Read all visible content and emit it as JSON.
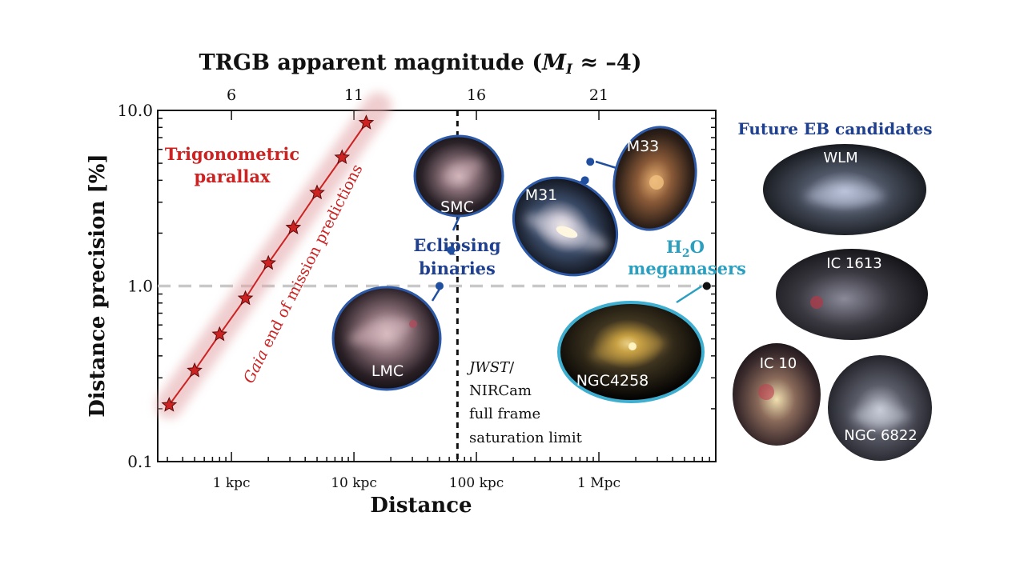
{
  "chart_data": {
    "type": "scatter",
    "top_axis": {
      "label_main": "TRGB apparent magnitude (",
      "label_var": "M",
      "label_sub": "I",
      "label_tail": " ≈ –4)",
      "ticks": [
        6,
        11,
        16,
        21
      ]
    },
    "xlabel": "Distance",
    "ylabel": "Distance precision [%]",
    "x_scale": "log",
    "y_scale": "log",
    "xlim_kpc": [
      0.25,
      9000
    ],
    "ylim": [
      0.1,
      10.0
    ],
    "x_ticks": [
      {
        "value_kpc": 1,
        "label": "1 kpc"
      },
      {
        "value_kpc": 10,
        "label": "10 kpc"
      },
      {
        "value_kpc": 100,
        "label": "100 kpc"
      },
      {
        "value_kpc": 1000,
        "label": "1 Mpc"
      }
    ],
    "y_ticks": [
      {
        "value": 0.1,
        "label": "0.1"
      },
      {
        "value": 1.0,
        "label": "1.0"
      },
      {
        "value": 10.0,
        "label": "10.0"
      }
    ],
    "series": [
      {
        "name": "Gaia end of mission predictions",
        "color": "#cc2222",
        "points": [
          {
            "x_kpc": 0.31,
            "y": 0.21
          },
          {
            "x_kpc": 0.5,
            "y": 0.33
          },
          {
            "x_kpc": 0.8,
            "y": 0.53
          },
          {
            "x_kpc": 1.3,
            "y": 0.85
          },
          {
            "x_kpc": 2.0,
            "y": 1.35
          },
          {
            "x_kpc": 3.2,
            "y": 2.15
          },
          {
            "x_kpc": 5.0,
            "y": 3.4
          },
          {
            "x_kpc": 8.0,
            "y": 5.4
          },
          {
            "x_kpc": 12.6,
            "y": 8.5
          }
        ]
      }
    ],
    "reference_lines": [
      {
        "type": "horizontal",
        "y": 1.0,
        "color": "#c8c8c8"
      },
      {
        "type": "vertical",
        "x_kpc": 70,
        "color": "#111111"
      }
    ],
    "method_labels": {
      "parallax_1": "Trigonometric",
      "parallax_2": "parallax",
      "gaia_italic": "Gaia",
      "gaia_rest": " end of mission predictions",
      "eb_1": "Eclipsing",
      "eb_2": "binaries",
      "maser_1_pre": "H",
      "maser_1_sub": "2",
      "maser_1_post": "O",
      "maser_2": "megamasers"
    },
    "jwst_note": {
      "line1_italic": "JWST",
      "line1_rest": "/",
      "line2": "NIRCam",
      "line3": "full frame",
      "line4": "saturation limit"
    },
    "anchor_points": [
      {
        "name": "LMC",
        "x_kpc": 50,
        "y": 1.0,
        "color": "#1f4f9e"
      },
      {
        "name": "SMC",
        "x_kpc": 62,
        "y": 1.6,
        "color": "#1f4f9e"
      },
      {
        "name": "M31",
        "x_kpc": 770,
        "y": 4.0,
        "color": "#1f4f9e"
      },
      {
        "name": "M33",
        "x_kpc": 850,
        "y": 5.1,
        "color": "#1f4f9e"
      },
      {
        "name": "NGC4258",
        "x_kpc": 7600,
        "y": 1.0,
        "color": "#111111"
      }
    ],
    "galaxy_labels": {
      "smc": "SMC",
      "lmc": "LMC",
      "m31": "M31",
      "m33": "M33",
      "ngc4258": "NGC4258"
    },
    "future_candidates": {
      "title": "Future EB candidates",
      "items": [
        "WLM",
        "IC 1613",
        "IC 10",
        "NGC 6822"
      ]
    },
    "colors": {
      "gaia_red": "#cc2222",
      "eb_blue": "#1f3f8f",
      "maser_cyan": "#2a9fc0",
      "axis": "#111111"
    }
  }
}
